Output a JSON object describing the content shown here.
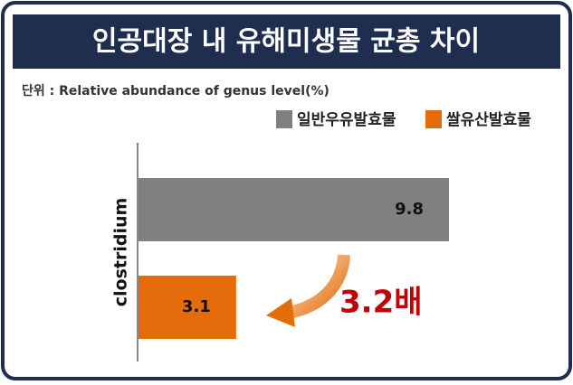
{
  "chart_data": {
    "type": "bar",
    "orientation": "horizontal",
    "title": "인공대장 내 유해미생물 균총 차이",
    "subtitle": "단위 : Relative abundance of genus level(%)",
    "categories": [
      "clostridium"
    ],
    "series": [
      {
        "name": "일반우유발효물",
        "color": "#808080",
        "values": [
          9.8
        ]
      },
      {
        "name": "쌀유산발효물",
        "color": "#e46c0a",
        "values": [
          3.1
        ]
      }
    ],
    "annotation": "3.2배",
    "legend": "top-right"
  }
}
